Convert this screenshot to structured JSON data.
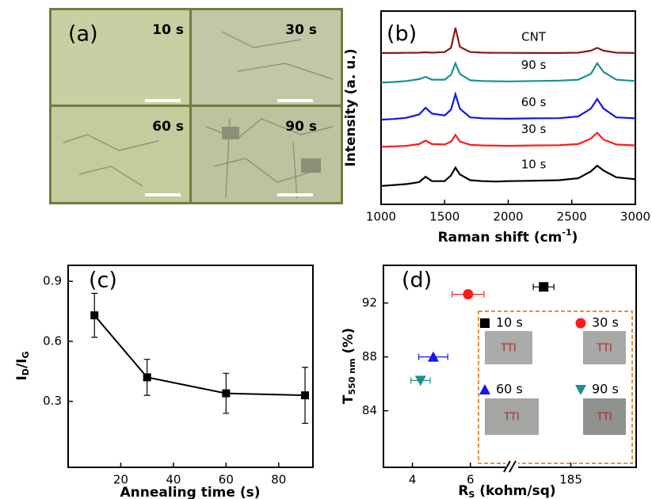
{
  "chart_data": [
    {
      "type": "micrograph",
      "panel_label": "(a)",
      "labels": [
        "10 s",
        "30 s",
        "60 s",
        "90 s"
      ]
    },
    {
      "type": "line",
      "panel_label": "(b)",
      "ylabel": "Intensity (a. u.)",
      "xlabel": [
        "Raman shift (cm",
        "-1",
        ")"
      ],
      "x": [
        1000,
        1100,
        1200,
        1300,
        1350,
        1400,
        1500,
        1550,
        1585,
        1620,
        1700,
        1800,
        1900,
        2000,
        2200,
        2400,
        2550,
        2650,
        2700,
        2750,
        2850,
        3000
      ],
      "xlim": [
        1000,
        3000
      ],
      "xticks": [
        1000,
        1500,
        2000,
        2500,
        3000
      ],
      "ylim": [
        0,
        10
      ],
      "series": [
        {
          "name": "CNT",
          "color": "#8b1a1a",
          "values": [
            7.83,
            7.83,
            7.84,
            7.85,
            7.87,
            7.85,
            7.88,
            8.1,
            9.14,
            8.15,
            7.88,
            7.85,
            7.84,
            7.84,
            7.83,
            7.83,
            7.85,
            7.95,
            8.1,
            7.95,
            7.85,
            7.83
          ]
        },
        {
          "name": "90 s",
          "color": "#1a9090",
          "values": [
            6.3,
            6.33,
            6.38,
            6.48,
            6.6,
            6.45,
            6.45,
            6.7,
            7.3,
            6.75,
            6.42,
            6.38,
            6.37,
            6.36,
            6.38,
            6.4,
            6.45,
            6.75,
            7.3,
            6.85,
            6.45,
            6.38
          ]
        },
        {
          "name": "60 s",
          "color": "#1515ee",
          "values": [
            4.38,
            4.42,
            4.48,
            4.65,
            5.0,
            4.7,
            4.6,
            4.9,
            5.7,
            4.95,
            4.5,
            4.45,
            4.44,
            4.43,
            4.45,
            4.46,
            4.55,
            4.95,
            5.45,
            4.95,
            4.5,
            4.45
          ]
        },
        {
          "name": "30 s",
          "color": "#ff1a1a",
          "values": [
            2.98,
            3.0,
            3.03,
            3.12,
            3.3,
            3.12,
            3.1,
            3.25,
            3.6,
            3.25,
            3.08,
            3.05,
            3.04,
            3.03,
            3.05,
            3.06,
            3.12,
            3.4,
            3.7,
            3.35,
            3.1,
            3.05
          ]
        },
        {
          "name": "10 s",
          "color": "#000000",
          "values": [
            0.95,
            1.0,
            1.05,
            1.15,
            1.43,
            1.2,
            1.2,
            1.5,
            1.9,
            1.55,
            1.25,
            1.2,
            1.18,
            1.2,
            1.22,
            1.25,
            1.35,
            1.7,
            2.0,
            1.75,
            1.4,
            1.3
          ]
        }
      ]
    },
    {
      "type": "errorline",
      "panel_label": "(c)",
      "ylabel": [
        "I",
        "D",
        "/I",
        "G"
      ],
      "xlabel": "Annealing time (s)",
      "x": [
        10,
        30,
        60,
        90
      ],
      "values": [
        0.73,
        0.42,
        0.34,
        0.33
      ],
      "errors": [
        0.11,
        0.09,
        0.1,
        0.14
      ],
      "color": "#000000",
      "xlim": [
        0,
        93
      ],
      "xticks": [
        20,
        40,
        60,
        80
      ],
      "ylim": [
        -0.03,
        0.98
      ],
      "yticks": [
        0.3,
        0.6,
        0.9
      ]
    },
    {
      "type": "errorscatter",
      "panel_label": "(d)",
      "ylabel": [
        "T",
        "550 nm",
        " (%)"
      ],
      "xlabel": [
        "R",
        "S",
        " (kohm/sq)"
      ],
      "xlim": [
        3,
        197
      ],
      "x_break": [
        7.4,
        174
      ],
      "xticks": [
        4,
        6,
        185
      ],
      "ylim": [
        79.8,
        94.8
      ],
      "yticks": [
        84,
        88,
        92
      ],
      "inset_photo_text": "TTI",
      "series": [
        {
          "name": "10 s",
          "color": "#000000",
          "marker": "square",
          "x": [
            180
          ],
          "xerr": [
            1.9
          ],
          "values": [
            93.2
          ]
        },
        {
          "name": "30 s",
          "color": "#ff1a1a",
          "marker": "circle",
          "x": [
            5.92
          ],
          "xerr": [
            0.55
          ],
          "values": [
            92.65
          ]
        },
        {
          "name": "60 s",
          "color": "#1515ee",
          "marker": "triangle-up",
          "x": [
            4.72
          ],
          "xerr": [
            0.5
          ],
          "values": [
            88
          ]
        },
        {
          "name": "90 s",
          "color": "#1a9090",
          "marker": "triangle-down",
          "x": [
            4.28
          ],
          "xerr": [
            0.33
          ],
          "values": [
            86.25
          ]
        }
      ]
    }
  ]
}
